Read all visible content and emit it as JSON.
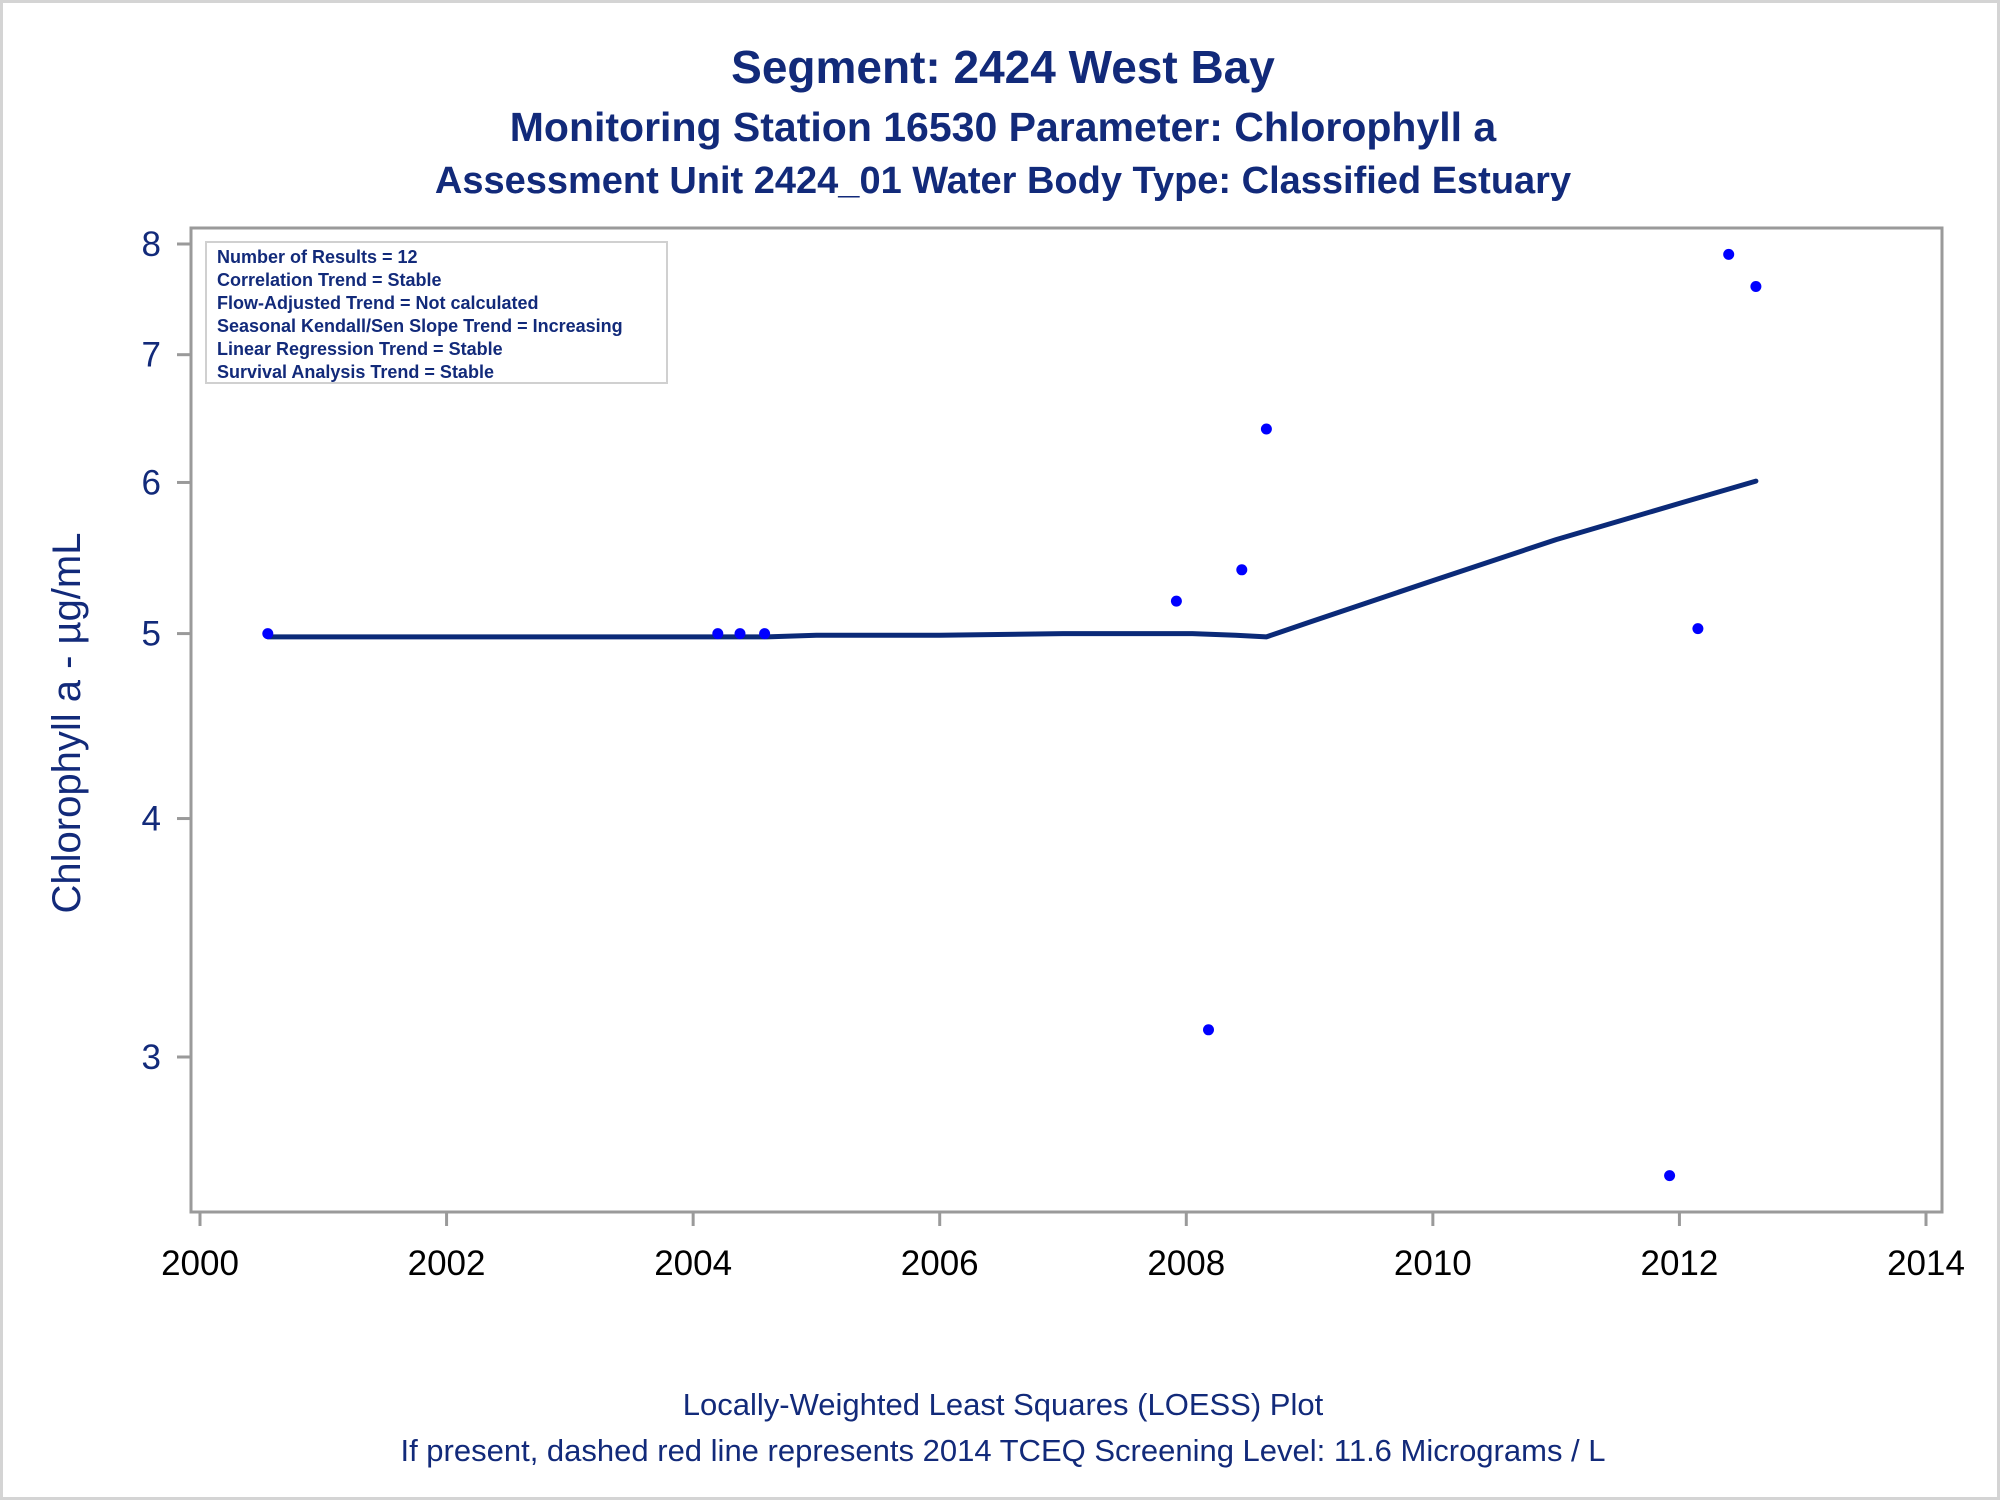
{
  "titles": {
    "line1": "Segment: 2424  West Bay",
    "line2": "Monitoring Station 16530 Parameter: Chlorophyll a",
    "line3": "Assessment Unit 2424_01   Water Body Type: Classified Estuary"
  },
  "info_box": [
    "Number of Results = 12",
    "Correlation Trend = Stable",
    "Flow-Adjusted Trend = Not calculated",
    "Seasonal Kendall/Sen Slope Trend = Increasing",
    "Linear Regression Trend = Stable",
    "Survival Analysis Trend = Stable"
  ],
  "footnotes": {
    "line1": "Locally-Weighted Least Squares (LOESS) Plot",
    "line2": "If present, dashed red line represents 2014 TCEQ Screening Level: 11.6 Micrograms / L"
  },
  "colors": {
    "text": "#122a7a",
    "points": "#0000ff",
    "loess_line": "#0b2a78",
    "axis": "#9a9a9a"
  },
  "chart_data": {
    "type": "scatter",
    "xlabel": "",
    "ylabel": "Chlorophyll a -  µg/mL",
    "x_scale": "linear",
    "y_scale": "log",
    "xlim": [
      2000,
      2014
    ],
    "ylim": [
      2.6,
      8.1
    ],
    "x_ticks": [
      2000,
      2002,
      2004,
      2006,
      2008,
      2010,
      2012,
      2014
    ],
    "y_ticks": [
      3,
      4,
      5,
      6,
      7,
      8
    ],
    "grid": false,
    "points": [
      {
        "x": 2000.55,
        "y": 5.0
      },
      {
        "x": 2004.2,
        "y": 5.0
      },
      {
        "x": 2004.38,
        "y": 5.0
      },
      {
        "x": 2004.58,
        "y": 5.0
      },
      {
        "x": 2007.92,
        "y": 5.2
      },
      {
        "x": 2008.18,
        "y": 3.1
      },
      {
        "x": 2008.45,
        "y": 5.4
      },
      {
        "x": 2008.65,
        "y": 6.4
      },
      {
        "x": 2011.92,
        "y": 2.6
      },
      {
        "x": 2012.15,
        "y": 5.03
      },
      {
        "x": 2012.4,
        "y": 7.9
      },
      {
        "x": 2012.62,
        "y": 7.6
      }
    ],
    "series": [
      {
        "kind": "loess",
        "x": [
          2000.55,
          2003.0,
          2004.6,
          2005.0,
          2006.0,
          2007.0,
          2007.6,
          2008.05,
          2008.4,
          2008.65,
          2009.0,
          2010.0,
          2011.0,
          2012.0,
          2012.62
        ],
        "y": [
          4.98,
          4.98,
          4.98,
          4.99,
          4.99,
          5.0,
          5.0,
          5.0,
          4.99,
          4.98,
          5.07,
          5.33,
          5.6,
          5.85,
          6.01
        ]
      }
    ]
  }
}
